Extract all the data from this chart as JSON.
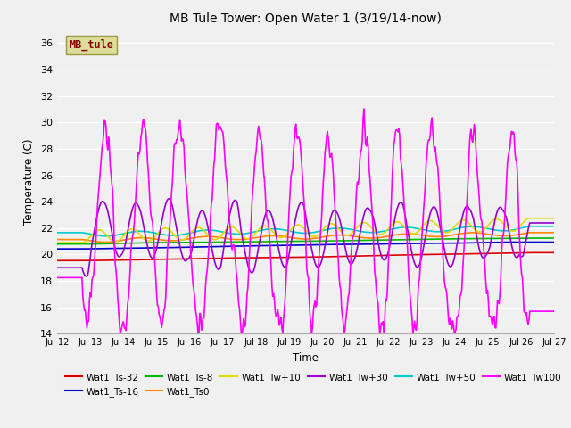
{
  "title": "MB Tule Tower: Open Water 1 (3/19/14-now)",
  "xlabel": "Time",
  "ylabel": "Temperature (C)",
  "xlim": [
    0,
    15
  ],
  "ylim": [
    14,
    37
  ],
  "yticks": [
    14,
    16,
    18,
    20,
    22,
    24,
    26,
    28,
    30,
    32,
    34,
    36
  ],
  "xtick_labels": [
    "Jul 12",
    "Jul 13",
    "Jul 14",
    "Jul 15",
    "Jul 16",
    "Jul 17",
    "Jul 18",
    "Jul 19",
    "Jul 20",
    "Jul 21",
    "Jul 22",
    "Jul 23",
    "Jul 24",
    "Jul 25",
    "Jul 26",
    "Jul 27"
  ],
  "xtick_positions": [
    0,
    1,
    2,
    3,
    4,
    5,
    6,
    7,
    8,
    9,
    10,
    11,
    12,
    13,
    14,
    15
  ],
  "bg_color": "#f0f0f0",
  "plot_bg_color": "#f0f0f0",
  "grid_color": "#ffffff",
  "series": {
    "Wat1_Ts-32": {
      "color": "#dd0000",
      "lw": 1.2
    },
    "Wat1_Ts-16": {
      "color": "#0000cc",
      "lw": 1.2
    },
    "Wat1_Ts-8": {
      "color": "#00bb00",
      "lw": 1.2
    },
    "Wat1_Ts0": {
      "color": "#ff8800",
      "lw": 1.2
    },
    "Wat1_Tw+10": {
      "color": "#dddd00",
      "lw": 1.2
    },
    "Wat1_Tw+30": {
      "color": "#9900cc",
      "lw": 1.2
    },
    "Wat1_Tw+50": {
      "color": "#00cccc",
      "lw": 1.2
    },
    "Wat1_Tw100": {
      "color": "#ff00ff",
      "lw": 1.2
    }
  },
  "watermark": "MB_tule",
  "watermark_bg": "#dddd99",
  "watermark_fg": "#880000"
}
